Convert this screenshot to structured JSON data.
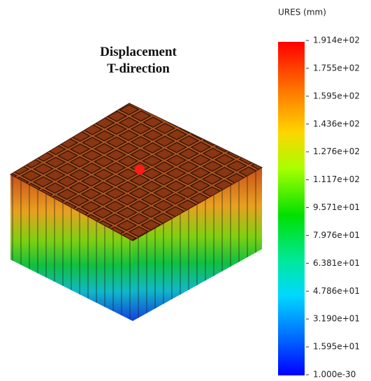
{
  "title": [
    "Displacement",
    "T-direction"
  ],
  "legend": {
    "title": "URES (mm)",
    "labels": [
      "1.914e+02",
      "1.755e+02",
      "1.595e+02",
      "1.436e+02",
      "1.276e+02",
      "1.117e+02",
      "9.571e+01",
      "7.976e+01",
      "6.381e+01",
      "4.786e+01",
      "3.190e+01",
      "1.595e+01",
      "1.000e-30"
    ]
  }
}
